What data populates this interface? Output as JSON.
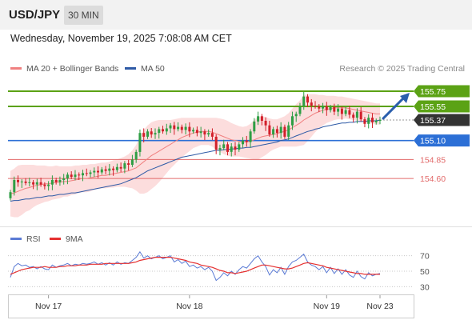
{
  "header": {
    "symbol": "USD/JPY",
    "timeframe": "30 MIN"
  },
  "datetime": "Wednesday, November 19, 2025 7:08:08 AM CET",
  "legend": {
    "ma_bb": "MA 20 + Bollinger Bands",
    "ma50": "MA 50",
    "credit": "Research © 2025 Trading Central"
  },
  "colors": {
    "up": "#2e9e44",
    "down": "#d21f2a",
    "resistance": "#5ba215",
    "support_blue": "#2c6fd6",
    "support_red": "#e26a6a",
    "ma20": "#f08080",
    "ma50": "#2e5aa6",
    "bands": "#fbd7d7",
    "rsi": "#5b7bd5",
    "rsi_ma": "#e53030",
    "arrow": "#2b5fad",
    "current": "#333333"
  },
  "chart_data": [
    {
      "type": "candlestick",
      "ylim": [
        154.0,
        155.95
      ],
      "current_price": 155.37,
      "levels": [
        {
          "value": 155.75,
          "label": "155.75",
          "kind": "resistance"
        },
        {
          "value": 155.55,
          "label": "155.55",
          "kind": "resistance"
        },
        {
          "value": 155.37,
          "label": "155.37",
          "kind": "current"
        },
        {
          "value": 155.1,
          "label": "155.10",
          "kind": "pivot"
        },
        {
          "value": 154.85,
          "label": "154.85",
          "kind": "support"
        },
        {
          "value": 154.6,
          "label": "154.60",
          "kind": "support"
        }
      ],
      "x_labels": [
        "Nov 17",
        "Nov 18",
        "Nov 19",
        "Nov 23"
      ],
      "x_label_index": [
        10,
        47,
        83,
        97
      ],
      "close": [
        154.42,
        154.58,
        154.55,
        154.56,
        154.54,
        154.55,
        154.52,
        154.55,
        154.52,
        154.5,
        154.52,
        154.58,
        154.55,
        154.58,
        154.6,
        154.65,
        154.62,
        154.65,
        154.64,
        154.67,
        154.66,
        154.68,
        154.7,
        154.68,
        154.72,
        154.7,
        154.73,
        154.71,
        154.75,
        154.73,
        154.8,
        154.78,
        154.85,
        154.95,
        155.2,
        155.15,
        155.22,
        155.18,
        155.2,
        155.25,
        155.22,
        155.26,
        155.3,
        155.25,
        155.28,
        155.24,
        155.28,
        155.22,
        155.24,
        155.2,
        155.22,
        155.18,
        155.2,
        155.15,
        154.98,
        155.0,
        155.05,
        154.95,
        155.02,
        154.98,
        155.05,
        155.1,
        155.08,
        155.22,
        155.35,
        155.42,
        155.36,
        155.3,
        155.18,
        155.25,
        155.2,
        155.28,
        155.15,
        155.3,
        155.42,
        155.45,
        155.55,
        155.68,
        155.6,
        155.56,
        155.55,
        155.52,
        155.55,
        155.5,
        155.54,
        155.48,
        155.52,
        155.45,
        155.5,
        155.44,
        155.4,
        155.48,
        155.38,
        155.32,
        155.4,
        155.34,
        155.36,
        155.37
      ],
      "ma20": [
        154.4,
        154.41,
        154.43,
        154.45,
        154.47,
        154.48,
        154.5,
        154.51,
        154.52,
        154.53,
        154.53,
        154.54,
        154.55,
        154.55,
        154.56,
        154.56,
        154.57,
        154.58,
        154.59,
        154.6,
        154.6,
        154.61,
        154.62,
        154.63,
        154.64,
        154.64,
        154.65,
        154.66,
        154.67,
        154.68,
        154.69,
        154.7,
        154.72,
        154.74,
        154.78,
        154.82,
        154.86,
        154.9,
        154.93,
        154.96,
        154.99,
        155.02,
        155.05,
        155.08,
        155.11,
        155.14,
        155.16,
        155.18,
        155.2,
        155.21,
        155.22,
        155.22,
        155.22,
        155.21,
        155.19,
        155.17,
        155.15,
        155.13,
        155.11,
        155.1,
        155.09,
        155.08,
        155.08,
        155.09,
        155.11,
        155.13,
        155.15,
        155.16,
        155.17,
        155.18,
        155.19,
        155.21,
        155.22,
        155.24,
        155.27,
        155.3,
        155.33,
        155.37,
        155.4,
        155.43,
        155.46,
        155.48,
        155.5,
        155.51,
        155.52,
        155.53,
        155.53,
        155.53,
        155.53,
        155.52,
        155.51,
        155.5,
        155.49,
        155.48,
        155.47,
        155.46,
        155.45,
        155.45
      ],
      "ma50": [
        154.3,
        154.31,
        154.31,
        154.32,
        154.33,
        154.33,
        154.34,
        154.35,
        154.35,
        154.36,
        154.37,
        154.37,
        154.38,
        154.39,
        154.39,
        154.4,
        154.41,
        154.41,
        154.42,
        154.43,
        154.44,
        154.45,
        154.46,
        154.47,
        154.48,
        154.49,
        154.5,
        154.51,
        154.52,
        154.53,
        154.55,
        154.57,
        154.59,
        154.61,
        154.64,
        154.67,
        154.7,
        154.72,
        154.74,
        154.76,
        154.78,
        154.8,
        154.82,
        154.84,
        154.86,
        154.88,
        154.89,
        154.9,
        154.91,
        154.92,
        154.93,
        154.94,
        154.95,
        154.96,
        154.97,
        154.97,
        154.98,
        154.98,
        154.99,
        154.99,
        155.0,
        155.0,
        155.01,
        155.01,
        155.02,
        155.03,
        155.04,
        155.05,
        155.06,
        155.07,
        155.08,
        155.1,
        155.11,
        155.12,
        155.14,
        155.16,
        155.18,
        155.2,
        155.22,
        155.23,
        155.25,
        155.26,
        155.28,
        155.29,
        155.3,
        155.31,
        155.32,
        155.33,
        155.33,
        155.34,
        155.34,
        155.35,
        155.35,
        155.35,
        155.36,
        155.36,
        155.36,
        155.37
      ],
      "band_width": [
        0.3,
        0.32,
        0.34,
        0.33,
        0.31,
        0.3,
        0.28,
        0.26,
        0.25,
        0.24,
        0.23,
        0.22,
        0.22,
        0.21,
        0.2,
        0.2,
        0.19,
        0.19,
        0.18,
        0.18,
        0.18,
        0.18,
        0.17,
        0.17,
        0.17,
        0.17,
        0.17,
        0.18,
        0.18,
        0.19,
        0.2,
        0.22,
        0.25,
        0.3,
        0.38,
        0.42,
        0.44,
        0.44,
        0.43,
        0.41,
        0.38,
        0.35,
        0.32,
        0.3,
        0.28,
        0.26,
        0.24,
        0.22,
        0.2,
        0.19,
        0.18,
        0.18,
        0.18,
        0.19,
        0.21,
        0.22,
        0.23,
        0.23,
        0.22,
        0.21,
        0.2,
        0.2,
        0.21,
        0.23,
        0.26,
        0.28,
        0.27,
        0.25,
        0.22,
        0.2,
        0.19,
        0.19,
        0.2,
        0.22,
        0.25,
        0.28,
        0.3,
        0.33,
        0.31,
        0.28,
        0.25,
        0.22,
        0.2,
        0.18,
        0.17,
        0.16,
        0.15,
        0.15,
        0.14,
        0.14,
        0.14,
        0.14,
        0.14,
        0.14,
        0.14,
        0.14,
        0.14,
        0.14
      ]
    },
    {
      "type": "line",
      "legend": [
        "RSI",
        "9MA"
      ],
      "ylim": [
        20,
        80
      ],
      "y_ticks": [
        70,
        50,
        30
      ],
      "rsi": [
        42,
        56,
        60,
        57,
        58,
        55,
        56,
        53,
        56,
        53,
        52,
        58,
        55,
        57,
        58,
        60,
        57,
        59,
        58,
        60,
        59,
        60,
        62,
        59,
        61,
        58,
        61,
        58,
        62,
        59,
        61,
        60,
        64,
        68,
        75,
        67,
        70,
        66,
        68,
        70,
        66,
        68,
        70,
        62,
        65,
        60,
        63,
        56,
        58,
        54,
        56,
        52,
        55,
        50,
        38,
        42,
        48,
        44,
        50,
        46,
        52,
        56,
        54,
        60,
        66,
        70,
        62,
        56,
        45,
        52,
        48,
        55,
        46,
        56,
        62,
        64,
        68,
        72,
        62,
        58,
        56,
        52,
        56,
        48,
        55,
        47,
        53,
        46,
        52,
        45,
        42,
        50,
        43,
        40,
        48,
        44,
        46,
        47
      ],
      "rsi_ma": [
        46,
        48,
        50,
        52,
        53,
        54,
        55,
        55,
        55,
        56,
        55,
        55,
        55,
        56,
        56,
        57,
        57,
        57,
        58,
        58,
        58,
        59,
        59,
        59,
        59,
        60,
        60,
        60,
        60,
        60,
        60,
        60,
        61,
        62,
        64,
        65,
        66,
        67,
        68,
        68,
        68,
        68,
        68,
        67,
        66,
        65,
        64,
        62,
        61,
        60,
        58,
        57,
        56,
        55,
        53,
        51,
        50,
        48,
        48,
        47,
        48,
        49,
        50,
        52,
        54,
        56,
        58,
        58,
        57,
        56,
        55,
        54,
        53,
        53,
        54,
        56,
        58,
        60,
        61,
        60,
        59,
        58,
        57,
        55,
        54,
        53,
        52,
        51,
        50,
        49,
        48,
        47,
        47,
        46,
        46,
        46,
        46,
        46
      ]
    }
  ]
}
